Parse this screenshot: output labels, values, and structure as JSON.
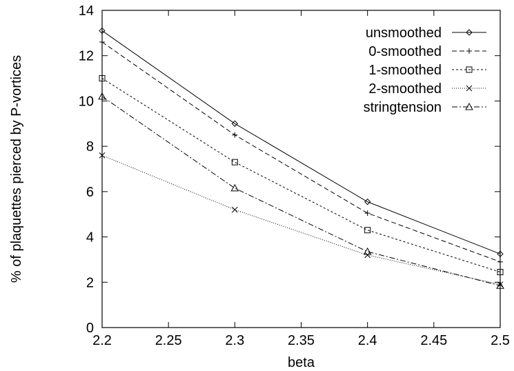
{
  "chart_data": {
    "type": "line",
    "title": "",
    "xlabel": "beta",
    "ylabel": "% of plaquettes pierced by P-vortices",
    "xlim": [
      2.2,
      2.5
    ],
    "ylim": [
      0,
      14
    ],
    "xticks": [
      "2.2",
      "2.25",
      "2.3",
      "2.35",
      "2.4",
      "2.45",
      "2.5"
    ],
    "yticks": [
      "0",
      "2",
      "4",
      "6",
      "8",
      "10",
      "12",
      "14"
    ],
    "x": [
      2.2,
      2.3,
      2.4,
      2.5
    ],
    "legend_position": "top-right",
    "grid": false,
    "series": [
      {
        "name": "unsmoothed",
        "values": [
          13.1,
          9.0,
          5.55,
          3.25
        ],
        "marker": "diamond",
        "dash": ""
      },
      {
        "name": "0-smoothed",
        "values": [
          12.6,
          8.5,
          5.05,
          2.9
        ],
        "marker": "plus",
        "dash": "7,4"
      },
      {
        "name": "1-smoothed",
        "values": [
          11.0,
          7.3,
          4.3,
          2.45
        ],
        "marker": "square",
        "dash": "3,3"
      },
      {
        "name": "2-smoothed",
        "values": [
          7.6,
          5.2,
          3.2,
          1.9
        ],
        "marker": "cross",
        "dash": "1,2"
      },
      {
        "name": "stringtension",
        "values": [
          10.2,
          6.15,
          3.35,
          1.85
        ],
        "marker": "triangle",
        "dash": "8,3,2,3"
      }
    ]
  }
}
